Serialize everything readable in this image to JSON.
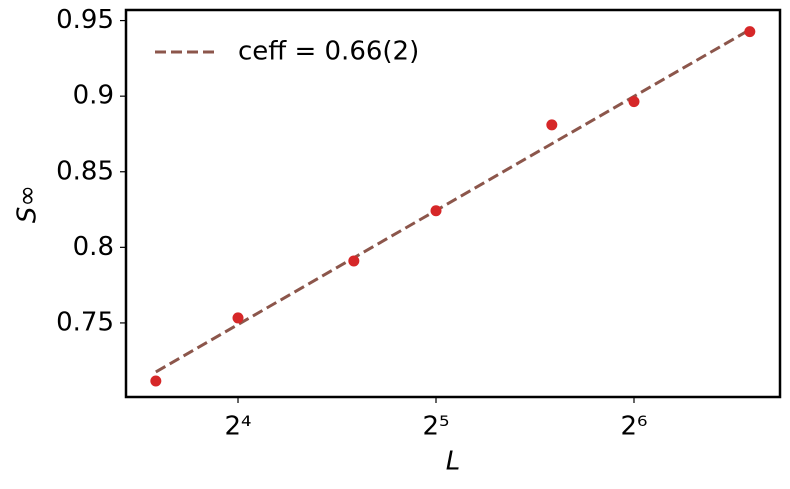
{
  "chart_data": {
    "type": "scatter",
    "x_label": "L",
    "y_label": "S∞",
    "xscale": "log2",
    "xlim": [
      10.81,
      106.7
    ],
    "ylim": [
      0.701,
      0.957
    ],
    "xticks": [
      {
        "value": 16,
        "label": "2⁴"
      },
      {
        "value": 32,
        "label": "2⁵"
      },
      {
        "value": 64,
        "label": "2⁶"
      }
    ],
    "yticks": [
      0.75,
      0.8,
      0.85,
      0.9,
      0.95
    ],
    "points": {
      "color": "#d62728",
      "x": [
        12,
        16,
        24,
        32,
        48,
        64,
        96
      ],
      "values": [
        0.7116,
        0.7533,
        0.791,
        0.8242,
        0.881,
        0.8964,
        0.9427
      ]
    },
    "series": [
      {
        "name": "ceff = 0.66(2)",
        "color": "#8c564b",
        "style": "dashed",
        "x": [
          12,
          96
        ],
        "values": [
          0.7176,
          0.944
        ]
      }
    ],
    "legend": "upper left"
  }
}
